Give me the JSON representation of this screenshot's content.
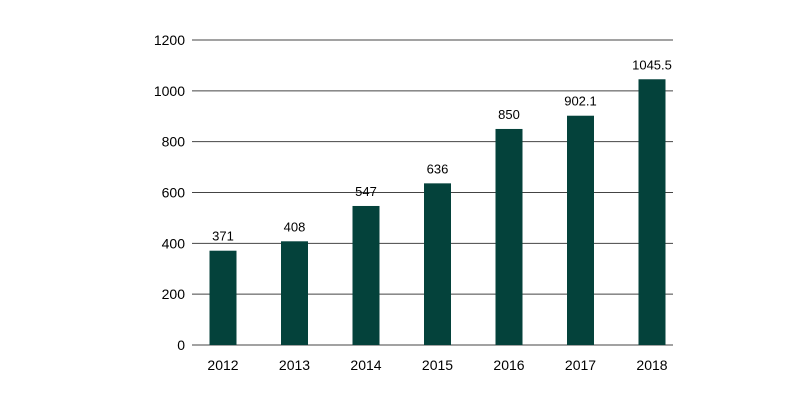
{
  "chart_data": {
    "type": "bar",
    "title": "",
    "xlabel": "",
    "ylabel": "",
    "categories": [
      "2012",
      "2013",
      "2014",
      "2015",
      "2016",
      "2017",
      "2018"
    ],
    "values": [
      371,
      408,
      547,
      636,
      850,
      902.1,
      1045.5
    ],
    "value_labels": [
      "371",
      "408",
      "547",
      "636",
      "850",
      "902.1",
      "1045.5"
    ],
    "ylim": [
      0,
      1200
    ],
    "yticks": [
      0,
      200,
      400,
      600,
      800,
      1000,
      1200
    ],
    "grid": true,
    "legend": "none",
    "colors": {
      "bar": "#04423b",
      "grid": "#444444"
    }
  }
}
